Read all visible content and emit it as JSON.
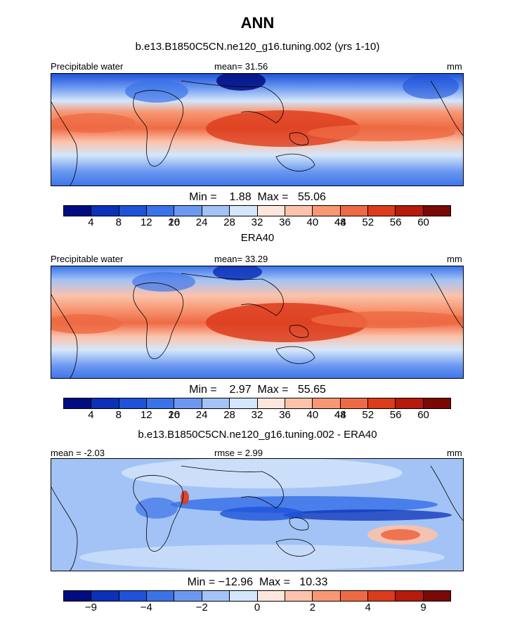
{
  "title": "ANN",
  "panels": [
    {
      "id": "model",
      "title": "b.e13.B1850C5CN.ne120_g16.tuning.002 (yrs 1-10)",
      "left_label": "Precipitable water",
      "center_label": "mean=  31.56",
      "right_label": "mm",
      "minmax": "Min =    1.88  Max =   55.06",
      "colorbar": {
        "colors": [
          "#000c7f",
          "#0a31b8",
          "#1d52d9",
          "#3b72e8",
          "#6b98f0",
          "#a3c3f6",
          "#d4e6fb",
          "#fde6dc",
          "#fcc2ab",
          "#f79773",
          "#ee6a44",
          "#dc3b1c",
          "#b51a0c",
          "#7a0804"
        ],
        "ticks": [
          "4",
          "8",
          "12",
          "16",
          "20",
          "24",
          "28",
          "32",
          "36",
          "40",
          "44",
          "48",
          "52",
          "56",
          "60"
        ]
      }
    },
    {
      "id": "obs",
      "title": "ERA40",
      "left_label": "Precipitable water",
      "center_label": "mean=  33.29",
      "right_label": "mm",
      "minmax": "Min =    2.97  Max =   55.65",
      "colorbar": {
        "colors": [
          "#000c7f",
          "#0a31b8",
          "#1d52d9",
          "#3b72e8",
          "#6b98f0",
          "#a3c3f6",
          "#d4e6fb",
          "#fde6dc",
          "#fcc2ab",
          "#f79773",
          "#ee6a44",
          "#dc3b1c",
          "#b51a0c",
          "#7a0804"
        ],
        "ticks": [
          "4",
          "8",
          "12",
          "16",
          "20",
          "24",
          "28",
          "32",
          "36",
          "40",
          "44",
          "48",
          "52",
          "56",
          "60"
        ]
      }
    },
    {
      "id": "diff",
      "title": "b.e13.B1850C5CN.ne120_g16.tuning.002 - ERA40",
      "left_label": "mean =  -2.03",
      "center_label": "rmse =   2.99",
      "right_label": "mm",
      "minmax": "Min = −12.96  Max =   10.33",
      "colorbar": {
        "colors": [
          "#000c7f",
          "#0a31b8",
          "#1d52d9",
          "#3b72e8",
          "#6b98f0",
          "#a3c3f6",
          "#d4e6fb",
          "#fde6dc",
          "#fcc2ab",
          "#f79773",
          "#ee6a44",
          "#dc3b1c",
          "#b51a0c",
          "#7a0804"
        ],
        "ticks": [
          "−9",
          "−4",
          "−2",
          "0",
          "2",
          "4",
          "9"
        ]
      }
    }
  ]
}
